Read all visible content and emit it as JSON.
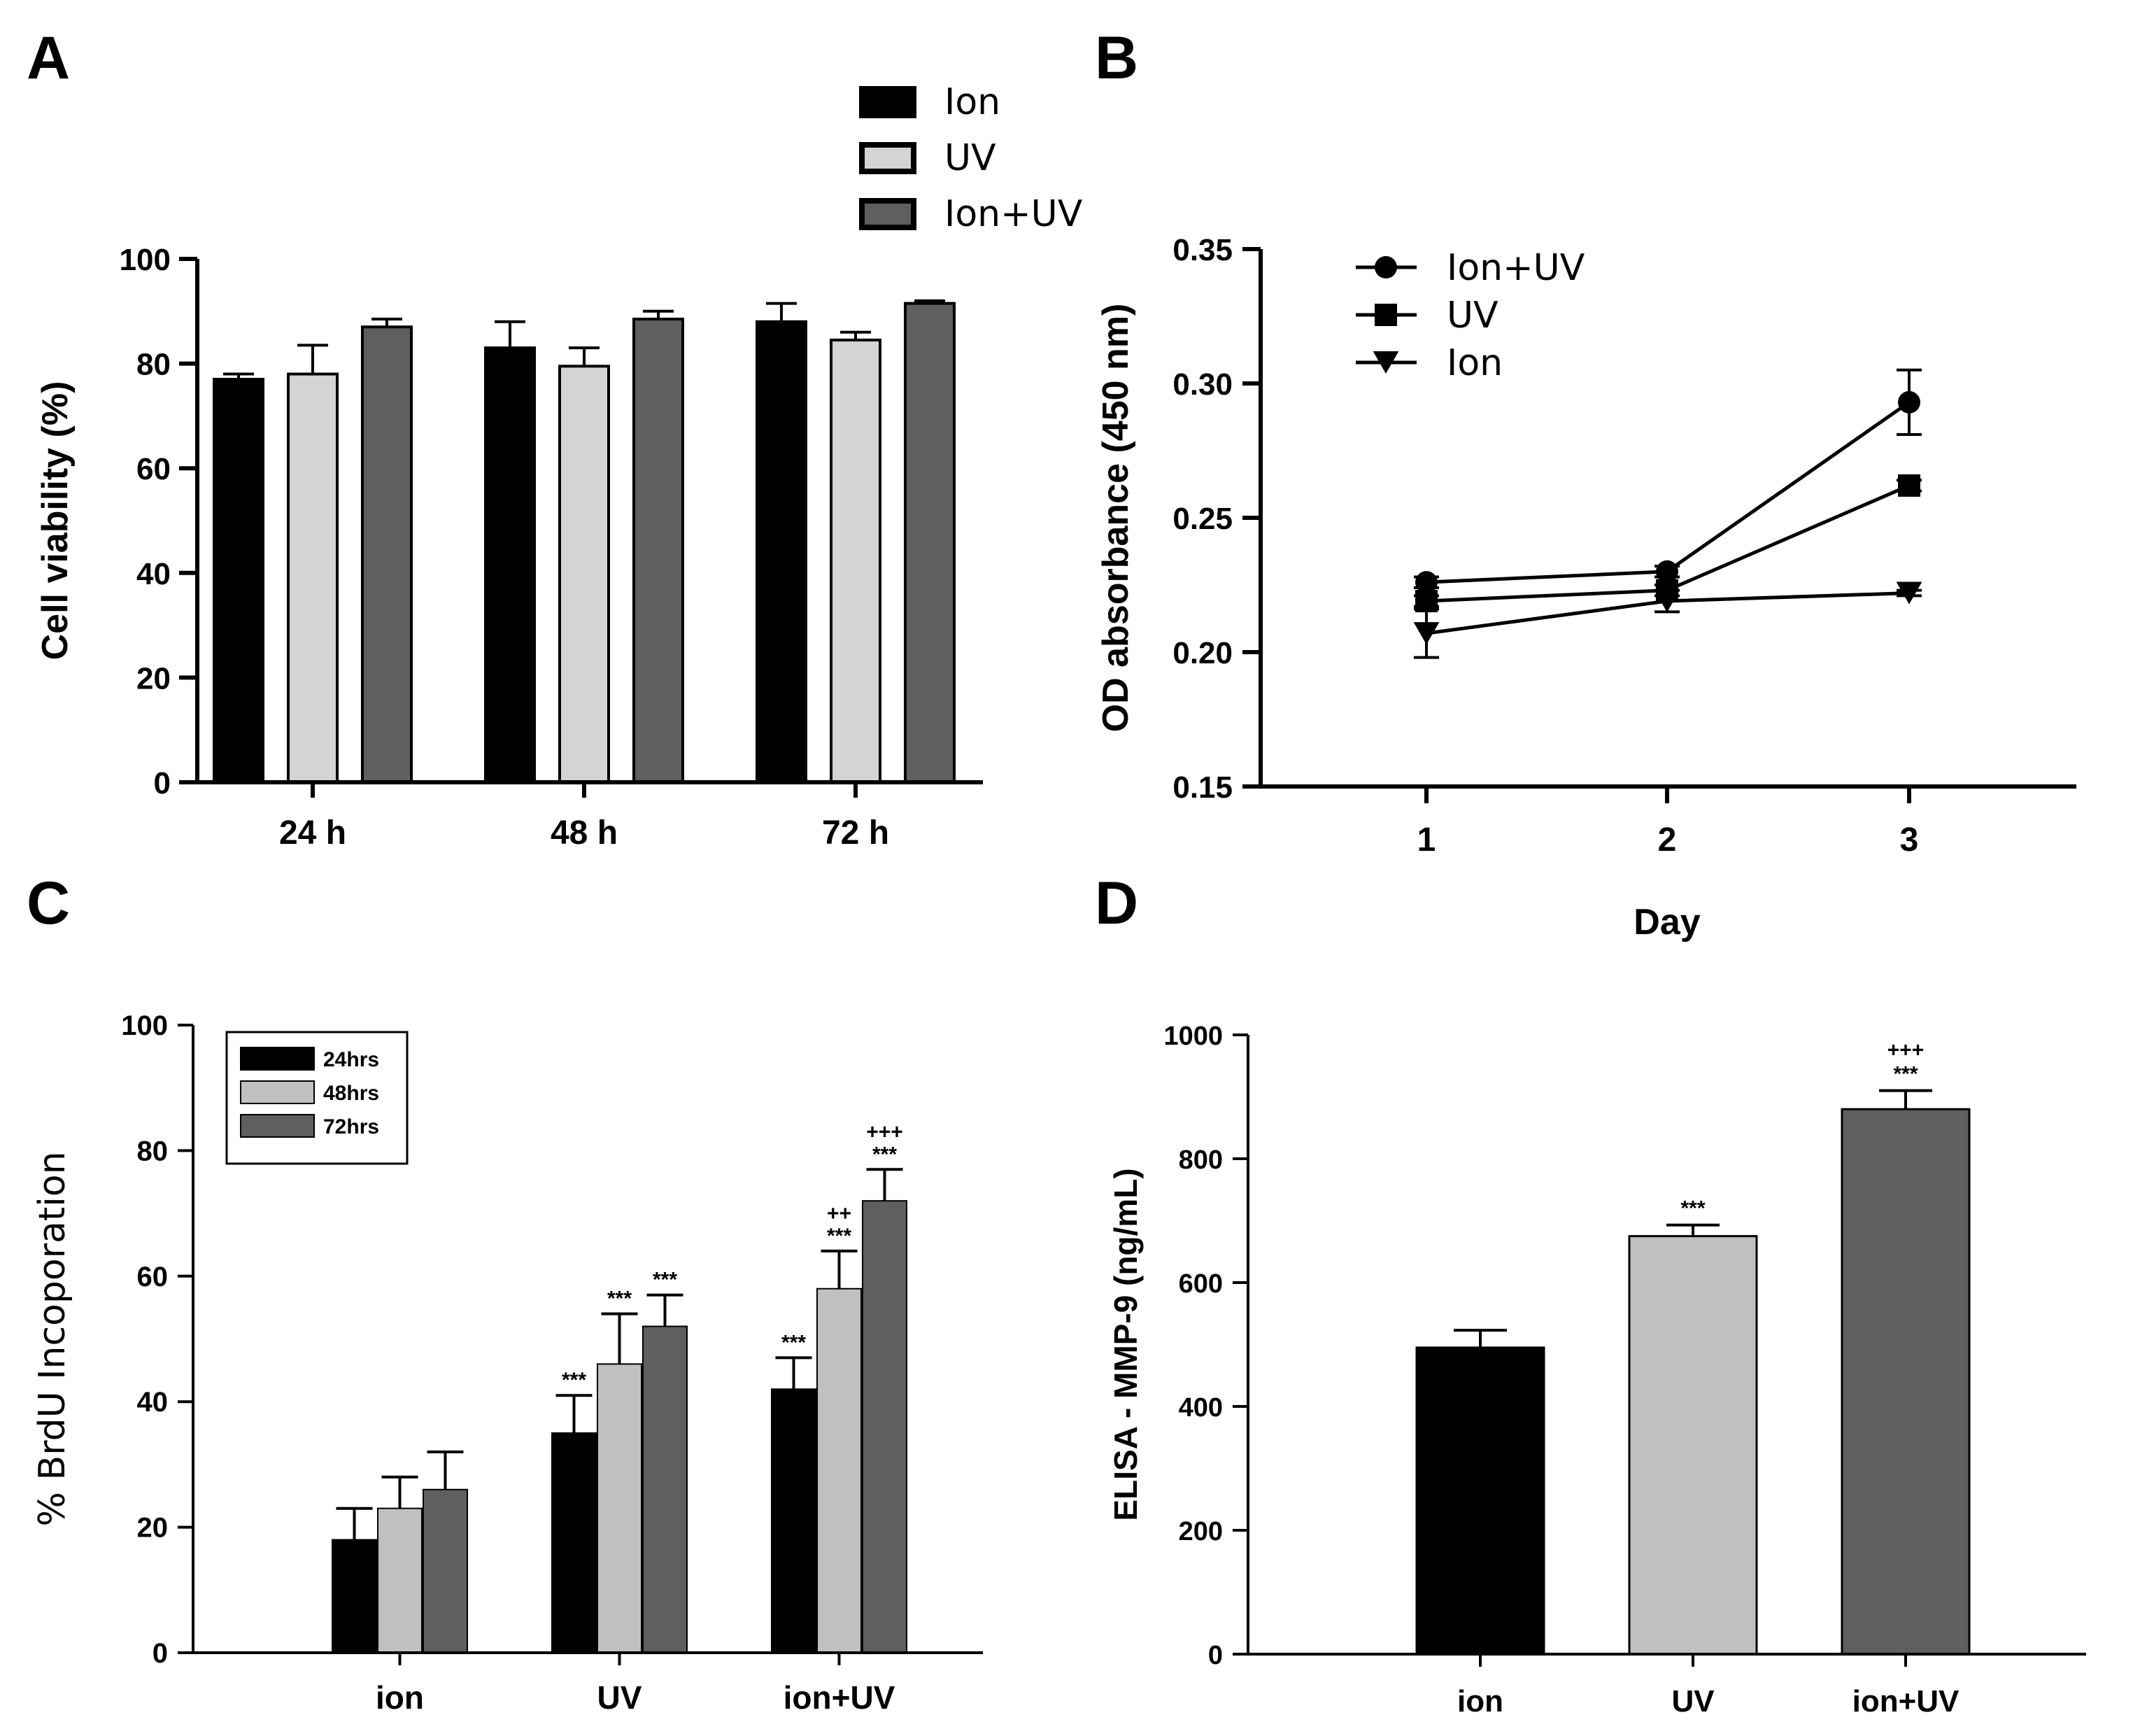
{
  "chart_data": [
    {
      "panel": "A",
      "type": "bar",
      "categories": [
        "24 h",
        "48 h",
        "72 h"
      ],
      "series": [
        {
          "name": "Ion",
          "color": "#000000",
          "values": [
            77,
            83,
            88
          ],
          "errors": [
            1,
            5,
            3.5
          ]
        },
        {
          "name": "UV",
          "color": "#d4d4d4",
          "values": [
            78,
            79.5,
            84.5
          ],
          "errors": [
            5.5,
            3.5,
            1.5
          ]
        },
        {
          "name": "Ion+UV",
          "color": "#5f5f5f",
          "values": [
            87,
            88.5,
            91.5
          ],
          "errors": [
            1.5,
            1.5,
            0.5
          ]
        }
      ],
      "ylabel": "Cell viability (%)",
      "xlabel": "",
      "ylim": [
        0,
        100
      ],
      "yticks": [
        "0",
        "20",
        "40",
        "60",
        "80",
        "100"
      ],
      "legend": "top"
    },
    {
      "panel": "B",
      "type": "line",
      "x": [
        "1",
        "2",
        "3"
      ],
      "series": [
        {
          "name": "Ion+UV",
          "marker": "circle",
          "values": [
            0.226,
            0.23,
            0.293
          ],
          "errors": [
            0.002,
            0.002,
            0.012
          ]
        },
        {
          "name": "UV",
          "marker": "square",
          "values": [
            0.219,
            0.223,
            0.262
          ],
          "errors": [
            0.002,
            0.002,
            0.002
          ]
        },
        {
          "name": "Ion",
          "marker": "triangle-down",
          "values": [
            0.207,
            0.219,
            0.222
          ],
          "errors": [
            0.009,
            0.004,
            0.001
          ]
        }
      ],
      "xlabel": "Day",
      "ylabel": "OD absorbance (450 nm)",
      "ylim": [
        0.15,
        0.35
      ],
      "yticks": [
        "0.15",
        "0.20",
        "0.25",
        "0.30",
        "0.35"
      ],
      "legend": "top-left"
    },
    {
      "panel": "C",
      "type": "bar",
      "categories": [
        "ion",
        "UV",
        "ion+UV"
      ],
      "series": [
        {
          "name": "24hrs",
          "color": "#000000",
          "values": [
            18,
            35,
            42
          ],
          "errors": [
            5,
            6,
            5
          ]
        },
        {
          "name": "48hrs",
          "color": "#c0c0c0",
          "values": [
            23,
            46,
            58
          ],
          "errors": [
            5,
            8,
            6
          ]
        },
        {
          "name": "72hrs",
          "color": "#5f5f5f",
          "values": [
            26,
            52,
            72
          ],
          "errors": [
            6,
            5,
            5
          ]
        }
      ],
      "annotations": [
        [
          "",
          "",
          ""
        ],
        [
          "***",
          "***",
          "***"
        ],
        [
          "***",
          "++\n***",
          "+++\n***"
        ]
      ],
      "ylabel": "% BrdU Incoporation",
      "xlabel": "",
      "ylim": [
        0,
        100
      ],
      "yticks": [
        "0",
        "20",
        "40",
        "60",
        "80",
        "100"
      ],
      "legend": "top-left"
    },
    {
      "panel": "D",
      "type": "bar",
      "categories": [
        "ion",
        "UV",
        "ion+UV"
      ],
      "series": [
        {
          "name": "ELISA - MMP-9",
          "colors": [
            "#000000",
            "#c0c0c0",
            "#5f5f5f"
          ],
          "values": [
            495,
            675,
            880
          ],
          "errors": [
            28,
            18,
            30
          ]
        }
      ],
      "annotations": [
        "",
        "***",
        "+++\n***"
      ],
      "ylabel": "ELISA - MMP-9 (ng/mL)",
      "xlabel": "",
      "ylim": [
        0,
        1000
      ],
      "yticks": [
        "0",
        "200",
        "400",
        "600",
        "800",
        "1000"
      ]
    }
  ],
  "panels": {
    "a": "A",
    "b": "B",
    "c": "C",
    "d": "D"
  }
}
